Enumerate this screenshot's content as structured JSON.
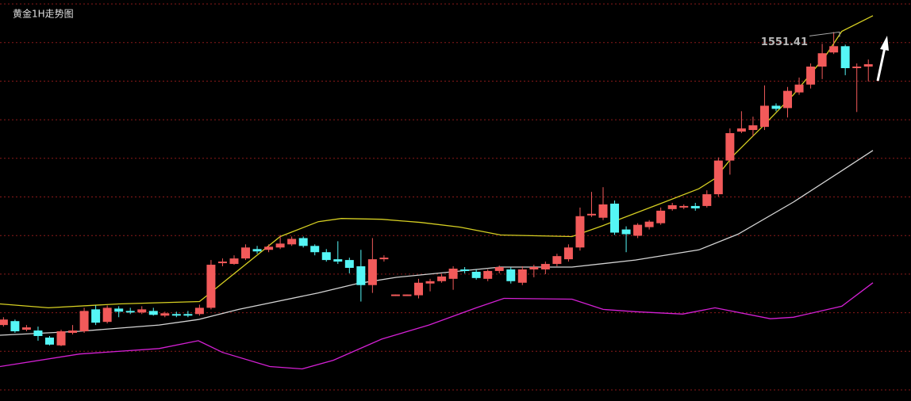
{
  "chart_data": {
    "type": "candlestick",
    "title": "黄金1H走势图",
    "xlim": [
      -0.3,
      78.7
    ],
    "ylim": [
      1504.3,
      1555.5
    ],
    "up_color": "#f25a5a",
    "down_color": "#55f6f6",
    "candles": {
      "open": [
        1514.0,
        1514.5,
        1513.4,
        1513.3,
        1512.4,
        1511.4,
        1513.0,
        1513.2,
        1516.0,
        1514.4,
        1516.1,
        1515.8,
        1515.6,
        1515.8,
        1515.2,
        1515.4,
        1515.4,
        1515.4,
        1516.2,
        1521.9,
        1521.8,
        1522.5,
        1523.7,
        1523.6,
        1523.9,
        1524.3,
        1525.1,
        1524.1,
        1523.3,
        1522.4,
        1522.3,
        1521.5,
        1519.1,
        1522.4,
        1517.7,
        1517.7,
        1517.8,
        1519.3,
        1519.6,
        1519.9,
        1521.1,
        1520.8,
        1519.9,
        1520.9,
        1521.1,
        1519.4,
        1521.1,
        1521.1,
        1521.8,
        1522.4,
        1523.9,
        1528.0,
        1527.7,
        1529.5,
        1526.2,
        1525.4,
        1526.5,
        1527.0,
        1528.8,
        1529.0,
        1529.2,
        1529.2,
        1530.7,
        1535.0,
        1538.7,
        1538.9,
        1539.3,
        1542.0,
        1541.7,
        1543.7,
        1544.7,
        1547.0,
        1548.8,
        1549.6,
        1546.8,
        1547.0
      ],
      "high": [
        1515.0,
        1514.7,
        1514.0,
        1513.8,
        1512.6,
        1513.4,
        1514.0,
        1516.2,
        1516.5,
        1516.5,
        1516.4,
        1516.2,
        1516.4,
        1516.2,
        1515.7,
        1515.7,
        1515.8,
        1516.6,
        1522.3,
        1522.5,
        1522.9,
        1524.3,
        1524.1,
        1524.3,
        1525.5,
        1525.3,
        1525.3,
        1524.3,
        1523.7,
        1524.7,
        1522.6,
        1523.6,
        1525.1,
        1522.9,
        1517.9,
        1517.9,
        1519.9,
        1519.9,
        1520.5,
        1521.5,
        1521.4,
        1521.1,
        1521.1,
        1521.6,
        1521.4,
        1521.5,
        1521.7,
        1522.1,
        1523.1,
        1524.3,
        1529.0,
        1531.0,
        1531.6,
        1529.9,
        1526.6,
        1527.0,
        1527.4,
        1529.0,
        1529.6,
        1529.4,
        1529.6,
        1531.2,
        1535.4,
        1539.1,
        1541.3,
        1540.6,
        1544.6,
        1542.3,
        1544.4,
        1545.6,
        1547.4,
        1549.9,
        1551.41,
        1549.8,
        1547.4,
        1547.9
      ],
      "low": [
        1513.8,
        1513.0,
        1513.2,
        1512.0,
        1511.4,
        1511.3,
        1512.8,
        1513.0,
        1514.0,
        1514.2,
        1515.0,
        1515.4,
        1515.4,
        1515.2,
        1515.0,
        1515.0,
        1515.0,
        1515.2,
        1516.0,
        1521.5,
        1521.7,
        1522.3,
        1523.1,
        1523.3,
        1523.7,
        1524.1,
        1523.9,
        1522.9,
        1522.1,
        1521.8,
        1520.6,
        1517.0,
        1518.1,
        1522.1,
        1517.7,
        1517.7,
        1517.4,
        1518.3,
        1519.4,
        1518.5,
        1520.6,
        1519.8,
        1519.6,
        1520.6,
        1519.3,
        1519.1,
        1520.1,
        1520.5,
        1521.5,
        1522.1,
        1523.5,
        1527.8,
        1527.4,
        1525.5,
        1523.3,
        1525.1,
        1526.2,
        1526.8,
        1528.6,
        1528.8,
        1528.6,
        1529.0,
        1530.4,
        1533.2,
        1538.5,
        1538.1,
        1538.9,
        1541.3,
        1540.5,
        1543.4,
        1544.2,
        1545.4,
        1548.6,
        1545.9,
        1541.2,
        1545.1
      ],
      "close": [
        1514.7,
        1513.2,
        1513.7,
        1512.6,
        1511.5,
        1513.2,
        1513.3,
        1515.8,
        1514.3,
        1516.2,
        1515.7,
        1515.6,
        1516.0,
        1515.3,
        1515.5,
        1515.2,
        1515.2,
        1516.2,
        1521.7,
        1522.1,
        1522.5,
        1523.9,
        1523.4,
        1524.0,
        1524.4,
        1525.0,
        1524.1,
        1523.3,
        1522.3,
        1522.1,
        1521.3,
        1519.1,
        1522.4,
        1522.6,
        1517.9,
        1517.9,
        1519.4,
        1519.6,
        1520.2,
        1521.2,
        1520.9,
        1520.0,
        1520.9,
        1521.4,
        1519.6,
        1521.1,
        1521.4,
        1521.8,
        1522.8,
        1523.9,
        1527.9,
        1528.2,
        1529.4,
        1525.8,
        1525.6,
        1526.8,
        1527.2,
        1528.6,
        1529.3,
        1529.2,
        1528.9,
        1530.7,
        1535.0,
        1538.5,
        1539.1,
        1539.5,
        1542.0,
        1541.6,
        1543.9,
        1544.7,
        1547.0,
        1548.7,
        1549.6,
        1546.8,
        1547.0,
        1547.3
      ]
    },
    "lines": [
      {
        "color": "#d6cf22",
        "x": [
          -0.3,
          3.9,
          10,
          17,
          24,
          27.3,
          29.3,
          32.8,
          36.2,
          39.6,
          43.1,
          49.3,
          52,
          56.8,
          60.3,
          61.7,
          63.4,
          65.8,
          68.5,
          71.3,
          72.7,
          75.4
        ],
        "values": [
          1516.7,
          1516.2,
          1516.7,
          1517.0,
          1525.3,
          1527.2,
          1527.6,
          1527.5,
          1527.1,
          1526.5,
          1525.5,
          1525.3,
          1526.7,
          1529.4,
          1531.4,
          1532.7,
          1535.8,
          1539.3,
          1543.4,
          1548.4,
          1551.5,
          1553.5
        ]
      },
      {
        "color": "#d4d4d4",
        "x": [
          -0.3,
          6.6,
          13.5,
          16.9,
          20.4,
          27.3,
          30.7,
          34.1,
          37.6,
          43.1,
          49.3,
          54.8,
          60.3,
          63.7,
          68.5,
          72.7,
          75.4
        ],
        "values": [
          1512.7,
          1513.2,
          1514.0,
          1514.7,
          1516.0,
          1518.1,
          1519.3,
          1520.1,
          1520.6,
          1521.4,
          1521.4,
          1522.3,
          1523.6,
          1525.6,
          1529.7,
          1533.7,
          1536.3
        ]
      },
      {
        "color": "#d420d4",
        "x": [
          -0.3,
          6.6,
          13.5,
          16.9,
          19.0,
          23.1,
          25.9,
          28.6,
          32.8,
          36.9,
          41.0,
          43.4,
          49.3,
          52.0,
          54.8,
          58.9,
          61.7,
          66.5,
          68.5,
          72.7,
          75.4
        ],
        "values": [
          1508.7,
          1510.3,
          1511.0,
          1512.0,
          1510.5,
          1508.7,
          1508.4,
          1509.5,
          1512.2,
          1514.0,
          1516.2,
          1517.4,
          1517.3,
          1516.0,
          1515.7,
          1515.4,
          1516.2,
          1514.8,
          1515.0,
          1516.4,
          1519.4
        ]
      }
    ],
    "annotations": [
      {
        "value": 1551.41,
        "label": "1551.41"
      }
    ]
  }
}
